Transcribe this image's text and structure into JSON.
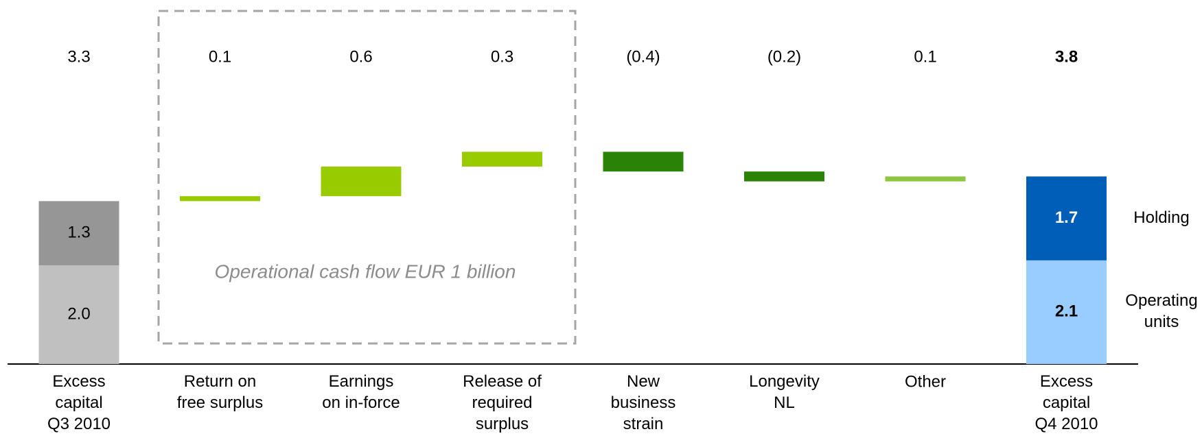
{
  "chart_data": {
    "type": "waterfall",
    "categories": [
      "Excess\ncapital\nQ3 2010",
      "Return on\nfree surplus",
      "Earnings\non in-force",
      "Release of\nrequired\nsurplus",
      "New\nbusiness\nstrain",
      "Longevity\nNL",
      "Other",
      "Excess\ncapital\nQ4 2010"
    ],
    "values": [
      3.3,
      0.1,
      0.6,
      0.3,
      -0.4,
      -0.2,
      0.1,
      3.8
    ],
    "value_labels": [
      "3.3",
      "0.1",
      "0.6",
      "0.3",
      "(0.4)",
      "(0.2)",
      "0.1",
      "3.8"
    ],
    "colors": [
      null,
      "#99cc00",
      "#99cc00",
      "#99cc00",
      "#2a8307",
      "#2a8307",
      "#8dc63f",
      null
    ],
    "series": [
      {
        "name": "Operating\nunits",
        "colors": [
          "#c0c0c0",
          "#99ccff"
        ],
        "values": [
          2.0,
          null,
          null,
          null,
          null,
          null,
          null,
          2.1
        ],
        "value_labels": [
          "2.0",
          null,
          null,
          null,
          null,
          null,
          null,
          "2.1"
        ]
      },
      {
        "name": "Holding",
        "colors": [
          "#969696",
          "#005eb8"
        ],
        "values": [
          1.3,
          null,
          null,
          null,
          null,
          null,
          null,
          1.7
        ],
        "value_labels": [
          "1.3",
          null,
          null,
          null,
          null,
          null,
          null,
          "1.7"
        ]
      }
    ],
    "annotation": "Operational cash flow EUR 1 billion"
  }
}
